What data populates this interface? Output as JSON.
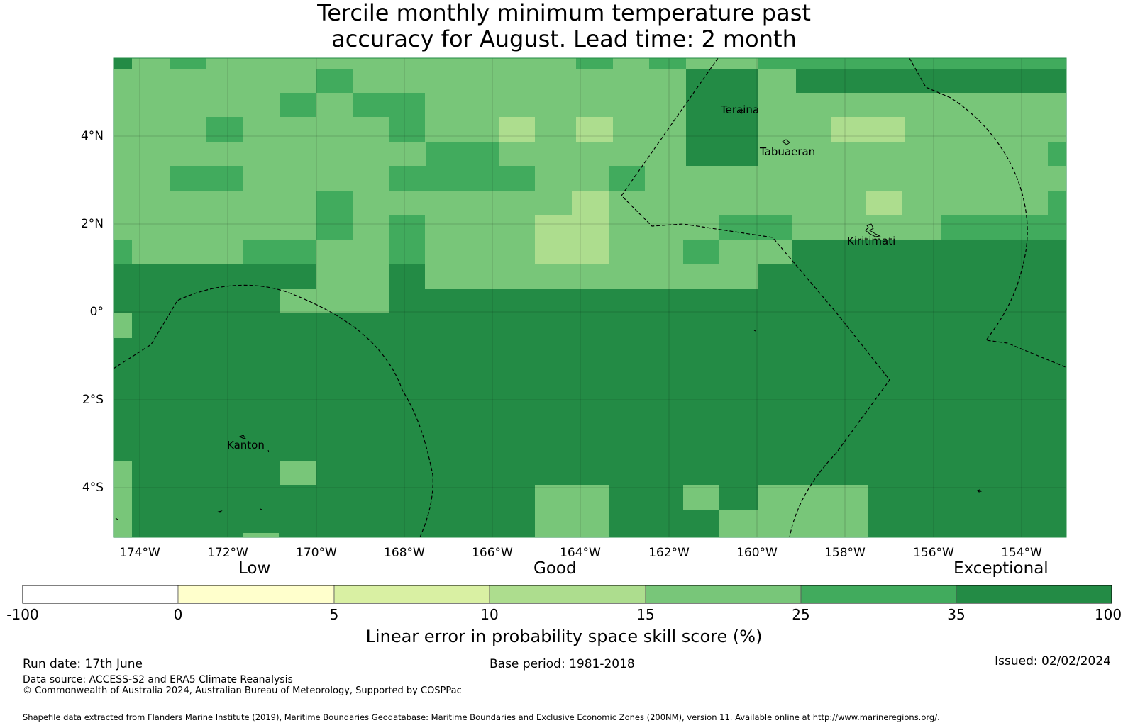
{
  "title": {
    "line1": "Tercile monthly minimum temperature past",
    "line2": "accuracy for August. Lead time: 2 month"
  },
  "map": {
    "lon_range": [
      -174.6,
      -153.0
    ],
    "lat_range": [
      -5.0,
      5.9
    ],
    "grid_resolution_deg": 0.8333,
    "background_color": "#238b45",
    "lat_ticks": [
      "4°N",
      "2°N",
      "0°",
      "2°S",
      "4°S"
    ],
    "lon_ticks": [
      "174°W",
      "172°W",
      "170°W",
      "168°W",
      "166°W",
      "164°W",
      "162°W",
      "160°W",
      "158°W",
      "156°W",
      "154°W"
    ],
    "places": [
      {
        "name": "Teraina",
        "lon": -160.4,
        "lat": 4.68
      },
      {
        "name": "Tabuaeran",
        "lon": -159.35,
        "lat": 3.87
      },
      {
        "name": "Kiritimati",
        "lon": -157.4,
        "lat": 1.87
      },
      {
        "name": "Kanton",
        "lon": -171.7,
        "lat": -2.82
      }
    ]
  },
  "colorbar": {
    "category_labels": [
      "Low",
      "Good",
      "Exceptional"
    ],
    "tick_labels": [
      "-100",
      "0",
      "5",
      "10",
      "15",
      "25",
      "35",
      "100"
    ],
    "colors": [
      "#ffffff",
      "#ffffcc",
      "#d9f0a3",
      "#addd8e",
      "#78c679",
      "#41ab5d",
      "#238b45"
    ],
    "label": "Linear error in probability space skill score (%)"
  },
  "footer": {
    "run_date": "Run date: 17th June",
    "base_period": "Base period: 1981-2018",
    "issued": "Issued: 02/02/2024",
    "data_source": "Data source: ACCESS-S2 and ERA5 Climate Reanalysis",
    "copyright": "© Commonwealth of Australia 2024, Australian Bureau of Meteorology, Supported by COSPPac",
    "shapefile": "Shapefile data extracted from Flanders Marine Institute (2019), Maritime Boundaries Geodatabase: Maritime Boundaries and Exclusive Economic Zones (200NM), version 11. Available online at http://www.marineregions.org/."
  }
}
